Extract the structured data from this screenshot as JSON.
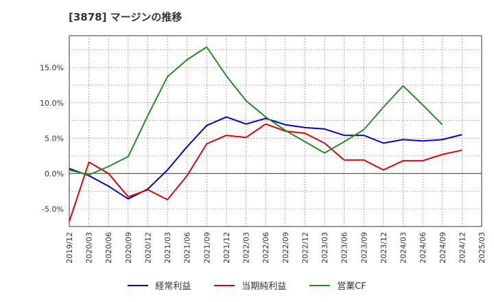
{
  "title": "[3878]  マージンの推移",
  "chart_data": {
    "type": "line",
    "x": [
      "2019/12",
      "2020/03",
      "2020/06",
      "2020/09",
      "2020/12",
      "2021/03",
      "2021/06",
      "2021/09",
      "2021/12",
      "2022/03",
      "2022/06",
      "2022/09",
      "2022/12",
      "2023/03",
      "2023/06",
      "2023/09",
      "2023/12",
      "2024/03",
      "2024/06",
      "2024/09",
      "2024/12",
      "2025/03"
    ],
    "ylim": [
      -7.5,
      19.5
    ],
    "yticks": [
      -5.0,
      0.0,
      5.0,
      10.0,
      15.0
    ],
    "ytick_labels": [
      "-5.0%",
      "0.0%",
      "5.0%",
      "10.0%",
      "15.0%"
    ],
    "grid": true,
    "legend_position": "bottom",
    "series": [
      {
        "name": "経常利益",
        "color": "#0000cc",
        "values": [
          0.7,
          -0.3,
          -1.8,
          -3.6,
          -2.2,
          0.5,
          3.8,
          6.8,
          8.0,
          7.0,
          7.8,
          6.9,
          6.5,
          6.3,
          5.4,
          5.4,
          4.3,
          4.8,
          4.6,
          4.8,
          5.5,
          null
        ]
      },
      {
        "name": "当期純利益",
        "color": "#dd0000",
        "values": [
          -6.8,
          1.6,
          0.0,
          -3.3,
          -2.3,
          -3.7,
          -0.3,
          4.2,
          5.4,
          5.1,
          7.0,
          6.0,
          5.7,
          4.3,
          1.9,
          1.9,
          0.5,
          1.8,
          1.8,
          2.7,
          3.3,
          null
        ]
      },
      {
        "name": "営業CF",
        "color": "#228b22",
        "values": [
          0.5,
          -0.2,
          1.0,
          2.4,
          8.2,
          13.7,
          16.1,
          17.9,
          13.8,
          10.3,
          8.0,
          6.1,
          4.5,
          2.9,
          4.5,
          6.2,
          9.4,
          12.4,
          9.7,
          6.9,
          null,
          null
        ]
      }
    ]
  }
}
